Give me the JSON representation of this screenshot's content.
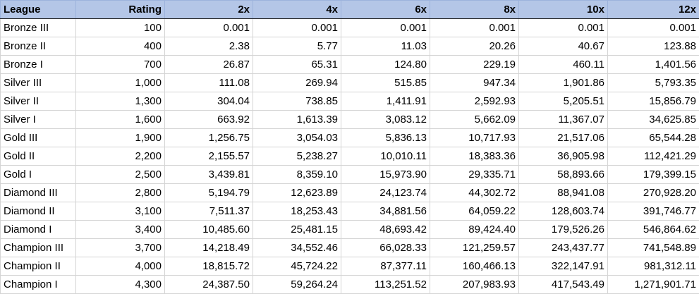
{
  "table": {
    "headers": [
      "League",
      "Rating",
      "2x",
      "4x",
      "6x",
      "8x",
      "10x",
      "12x"
    ],
    "rows": [
      [
        "Bronze III",
        "100",
        "0.001",
        "0.001",
        "0.001",
        "0.001",
        "0.001",
        "0.001"
      ],
      [
        "Bronze II",
        "400",
        "2.38",
        "5.77",
        "11.03",
        "20.26",
        "40.67",
        "123.88"
      ],
      [
        "Bronze I",
        "700",
        "26.87",
        "65.31",
        "124.80",
        "229.19",
        "460.11",
        "1,401.56"
      ],
      [
        "Silver III",
        "1,000",
        "111.08",
        "269.94",
        "515.85",
        "947.34",
        "1,901.86",
        "5,793.35"
      ],
      [
        "Silver II",
        "1,300",
        "304.04",
        "738.85",
        "1,411.91",
        "2,592.93",
        "5,205.51",
        "15,856.79"
      ],
      [
        "Silver I",
        "1,600",
        "663.92",
        "1,613.39",
        "3,083.12",
        "5,662.09",
        "11,367.07",
        "34,625.85"
      ],
      [
        "Gold III",
        "1,900",
        "1,256.75",
        "3,054.03",
        "5,836.13",
        "10,717.93",
        "21,517.06",
        "65,544.28"
      ],
      [
        "Gold II",
        "2,200",
        "2,155.57",
        "5,238.27",
        "10,010.11",
        "18,383.36",
        "36,905.98",
        "112,421.29"
      ],
      [
        "Gold I",
        "2,500",
        "3,439.81",
        "8,359.10",
        "15,973.90",
        "29,335.71",
        "58,893.66",
        "179,399.15"
      ],
      [
        "Diamond III",
        "2,800",
        "5,194.79",
        "12,623.89",
        "24,123.74",
        "44,302.72",
        "88,941.08",
        "270,928.20"
      ],
      [
        "Diamond II",
        "3,100",
        "7,511.37",
        "18,253.43",
        "34,881.56",
        "64,059.22",
        "128,603.74",
        "391,746.77"
      ],
      [
        "Diamond I",
        "3,400",
        "10,485.60",
        "25,481.15",
        "48,693.42",
        "89,424.40",
        "179,526.26",
        "546,864.62"
      ],
      [
        "Champion III",
        "3,700",
        "14,218.49",
        "34,552.46",
        "66,028.33",
        "121,259.57",
        "243,437.77",
        "741,548.89"
      ],
      [
        "Champion II",
        "4,000",
        "18,815.72",
        "45,724.22",
        "87,377.11",
        "160,466.13",
        "322,147.91",
        "981,312.11"
      ],
      [
        "Champion I",
        "4,300",
        "24,387.50",
        "59,264.24",
        "113,251.52",
        "207,983.93",
        "417,543.49",
        "1,271,901.71"
      ]
    ]
  },
  "colors": {
    "header_background": "#b4c6e7",
    "gridline": "#d4d4d4"
  }
}
